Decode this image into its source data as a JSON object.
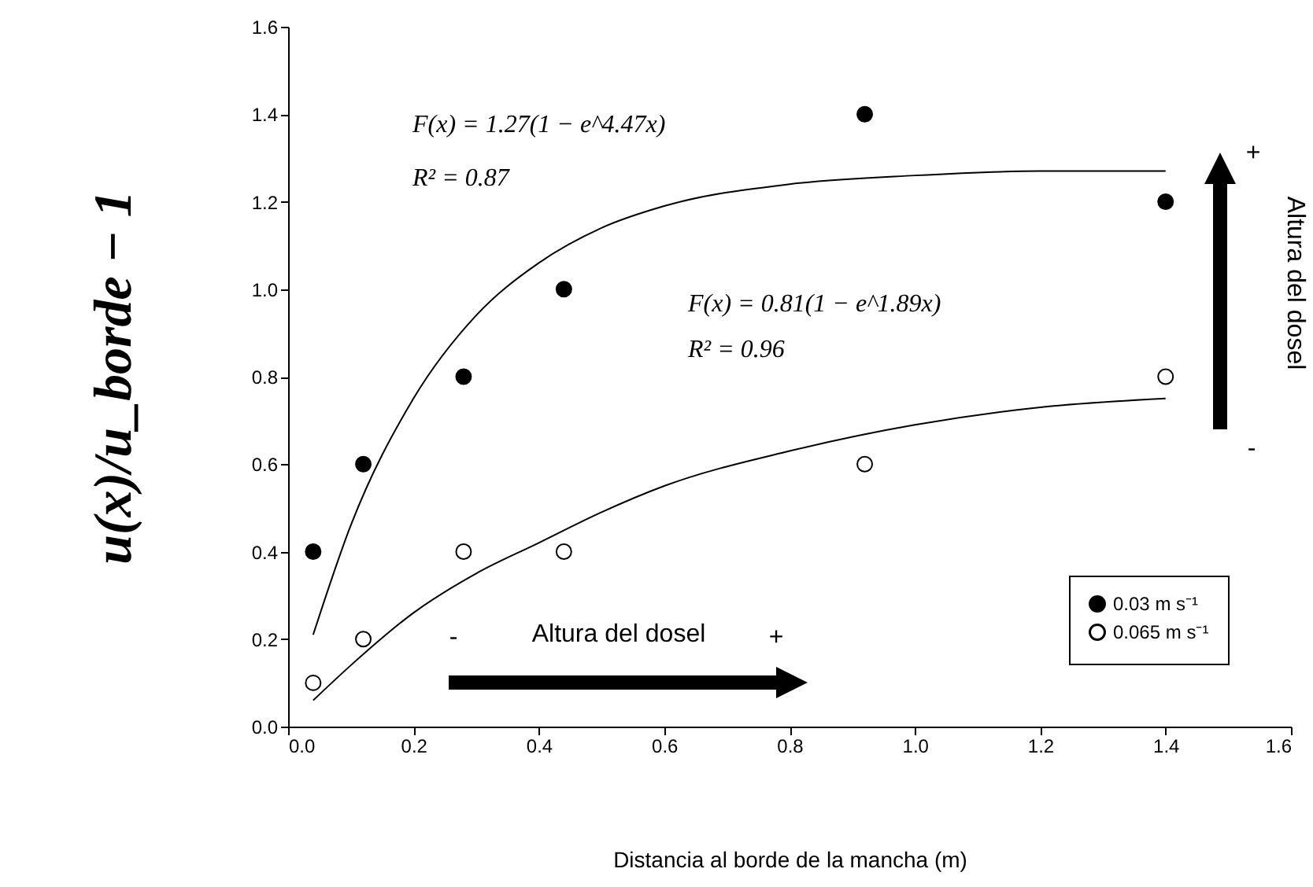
{
  "chart_data": {
    "type": "scatter",
    "xlabel": "Distancia al borde de la mancha (m)",
    "ylabel": "u(x)/u_borde − 1",
    "x": [
      0.04,
      0.12,
      0.28,
      0.44,
      0.92,
      1.4
    ],
    "series": [
      {
        "name": "0.03 m s⁻¹",
        "color": "#000000",
        "marker": "circle",
        "values": [
          0.4,
          0.6,
          0.8,
          1.0,
          1.4,
          1.2
        ]
      },
      {
        "name": "0.065 m s⁻¹",
        "color": "#ffffff",
        "marker": "circle",
        "values": [
          0.1,
          0.2,
          0.4,
          0.4,
          0.6,
          0.8
        ]
      },
      {
        "type": "line",
        "color": "#000000",
        "x": [
          0.04,
          0.1,
          0.2,
          0.3,
          0.4,
          0.5,
          0.6,
          0.8,
          1.0,
          1.2,
          1.4
        ],
        "values": [
          0.21,
          0.46,
          0.75,
          0.94,
          1.06,
          1.14,
          1.19,
          1.24,
          1.26,
          1.27,
          1.27
        ]
      },
      {
        "type": "line",
        "color": "#000000",
        "x": [
          0.04,
          0.1,
          0.2,
          0.3,
          0.4,
          0.5,
          0.6,
          0.8,
          1.0,
          1.2,
          1.4
        ],
        "values": [
          0.06,
          0.14,
          0.26,
          0.35,
          0.42,
          0.49,
          0.55,
          0.63,
          0.69,
          0.73,
          0.75
        ]
      }
    ],
    "annotations": [
      "F(x) = 1.27(1 − e^4.47x)",
      "R² = 0.87",
      "F(x) = 0.81(1 − e^1.89x)",
      "R² = 0.96",
      "Altura del dosel",
      "-",
      "+",
      "Altura del dosel",
      "+",
      "-"
    ],
    "xlim": [
      0,
      1.6
    ],
    "ylim": [
      0,
      1.6
    ],
    "xticks": [
      {
        "value": 0,
        "label": "0.0"
      },
      0.2,
      0.4,
      0.6,
      0.8,
      {
        "value": 1,
        "label": "1.0"
      },
      1.2,
      1.4,
      1.6
    ],
    "yticks": [
      {
        "value": 0,
        "label": "0.0"
      },
      0.2,
      0.4,
      0.6,
      0.8,
      {
        "value": 1,
        "label": "1.0"
      },
      1.2,
      1.4,
      1.6
    ],
    "grid": false,
    "legend": "bottom right"
  }
}
